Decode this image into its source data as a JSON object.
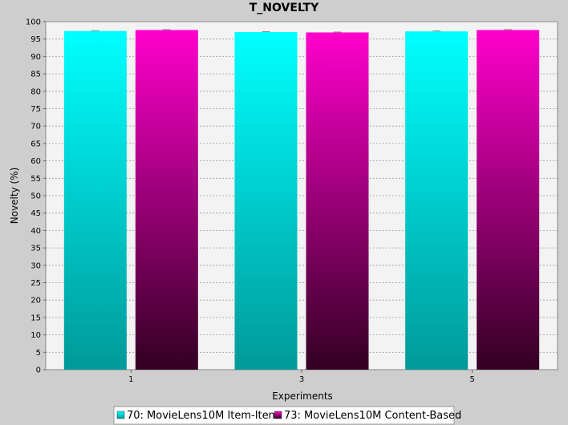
{
  "chart_data": {
    "type": "bar",
    "title": "T_NOVELTY",
    "xlabel": "Experiments",
    "ylabel": "Novelty (%)",
    "categories": [
      "1",
      "3",
      "5"
    ],
    "ylim": [
      0,
      100
    ],
    "yticks": [
      0,
      5,
      10,
      15,
      20,
      25,
      30,
      35,
      40,
      45,
      50,
      55,
      60,
      65,
      70,
      75,
      80,
      85,
      90,
      95,
      100
    ],
    "grid": true,
    "legend_position": "bottom",
    "series": [
      {
        "name": "70: MovieLens10M Item-Item",
        "values": [
          97.3,
          97.0,
          97.2
        ],
        "color_top": "#00ffff",
        "color_bottom": "#009999"
      },
      {
        "name": "73: MovieLens10M Content-Based",
        "values": [
          97.6,
          96.9,
          97.6
        ],
        "color_top": "#ff00cc",
        "color_bottom": "#330022"
      }
    ]
  }
}
